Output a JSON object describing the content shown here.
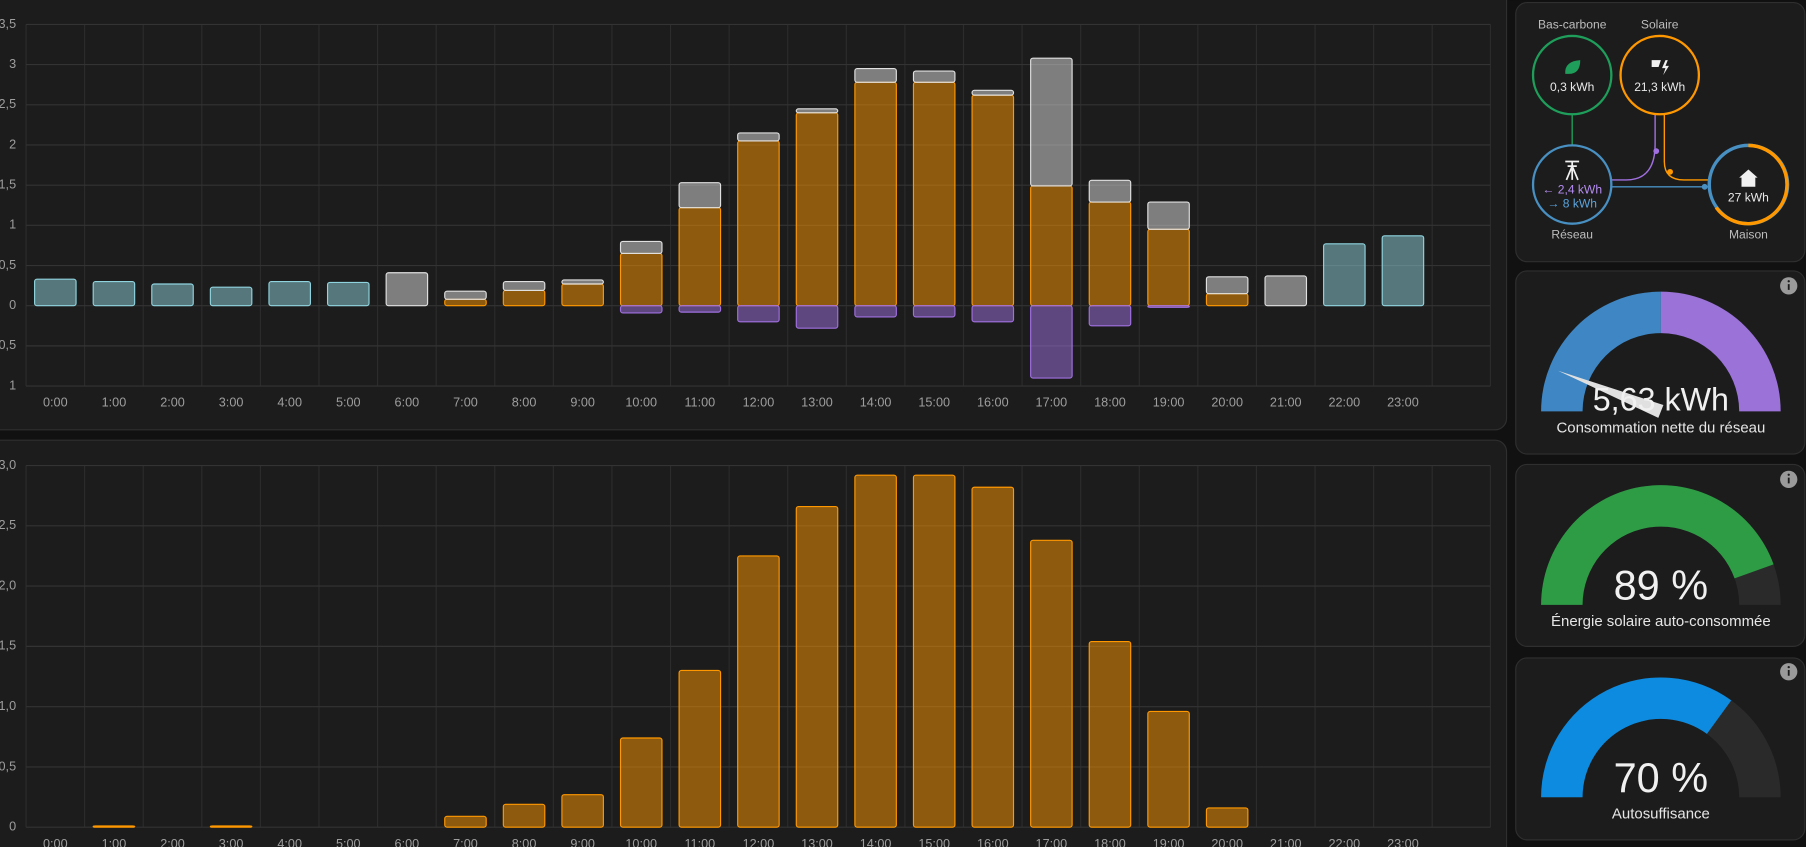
{
  "chart_data": [
    {
      "type": "bar",
      "stacked": true,
      "grid": true,
      "categories": [
        "0:00",
        "1:00",
        "2:00",
        "3:00",
        "4:00",
        "5:00",
        "6:00",
        "7:00",
        "8:00",
        "9:00",
        "10:00",
        "11:00",
        "12:00",
        "13:00",
        "14:00",
        "15:00",
        "16:00",
        "17:00",
        "18:00",
        "19:00",
        "20:00",
        "21:00",
        "22:00",
        "23:00"
      ],
      "series": [
        {
          "color": "#ff9800",
          "values": [
            null,
            null,
            null,
            null,
            null,
            null,
            null,
            0.08,
            0.19,
            0.27,
            0.65,
            1.22,
            2.05,
            2.4,
            2.78,
            2.78,
            2.62,
            1.49,
            1.29,
            0.95,
            0.15,
            null,
            null,
            null
          ]
        },
        {
          "color": "#8fd3de",
          "values": [
            0.33,
            0.3,
            0.27,
            0.23,
            0.3,
            0.29,
            null,
            null,
            null,
            null,
            null,
            null,
            null,
            null,
            null,
            null,
            null,
            null,
            null,
            null,
            null,
            null,
            0.77,
            0.87
          ]
        },
        {
          "color": "#e0e0e0",
          "values": [
            null,
            null,
            null,
            null,
            null,
            null,
            0.41,
            0.1,
            0.11,
            0.05,
            0.15,
            0.31,
            0.1,
            0.05,
            0.17,
            0.14,
            0.06,
            1.59,
            0.27,
            0.34,
            0.21,
            0.37,
            null,
            null
          ]
        },
        {
          "color": "#a070e0",
          "values": [
            null,
            null,
            null,
            null,
            null,
            null,
            null,
            null,
            null,
            null,
            -0.09,
            -0.08,
            -0.2,
            -0.28,
            -0.14,
            -0.14,
            -0.2,
            -0.9,
            -0.25,
            -0.02,
            null,
            null,
            null,
            null
          ]
        }
      ],
      "ylim": [
        -1,
        3.5
      ],
      "yticks": [
        {
          "value": -1,
          "label": "1"
        },
        {
          "value": -0.5,
          "label": "0,5"
        },
        0,
        {
          "value": 0.5,
          "label": "0,5"
        },
        1,
        {
          "value": 1.5,
          "label": "1,5"
        },
        2,
        {
          "value": 2.5,
          "label": "2,5"
        },
        3,
        {
          "value": 3.5,
          "label": "3,5"
        }
      ]
    },
    {
      "type": "bar",
      "grid": true,
      "color": "#ff9800",
      "categories": [
        "0:00",
        "1:00",
        "2:00",
        "3:00",
        "4:00",
        "5:00",
        "6:00",
        "7:00",
        "8:00",
        "9:00",
        "10:00",
        "11:00",
        "12:00",
        "13:00",
        "14:00",
        "15:00",
        "16:00",
        "17:00",
        "18:00",
        "19:00",
        "20:00",
        "21:00",
        "22:00",
        "23:00"
      ],
      "values": [
        0,
        0.01,
        0,
        0.01,
        0,
        0,
        0,
        0.09,
        0.19,
        0.27,
        0.74,
        1.3,
        2.25,
        2.66,
        2.92,
        2.92,
        2.82,
        2.38,
        1.54,
        0.96,
        0.16,
        0,
        0,
        0
      ],
      "ylim": [
        0,
        3
      ],
      "yticks": [
        0,
        {
          "value": 0.5,
          "label": "0,5"
        },
        {
          "value": 1,
          "label": "1,0"
        },
        {
          "value": 1.5,
          "label": "1,5"
        },
        {
          "value": 2,
          "label": "2,0"
        },
        {
          "value": 2.5,
          "label": "2,5"
        },
        {
          "value": 3,
          "label": "3,0"
        }
      ]
    }
  ],
  "energy_flow": {
    "nodes": [
      {
        "label": "Bas-carbone",
        "value": "0,3 kWh"
      },
      {
        "label": "Solaire",
        "value": "21,3 kWh"
      },
      {
        "label": "Réseau",
        "values": [
          "← 2,4 kWh",
          "→ 8 kWh"
        ]
      },
      {
        "label": "Maison",
        "value": "27 kWh"
      }
    ]
  },
  "gauges": [
    {
      "value_label": "5,63 kWh",
      "label": "Consommation nette du réseau"
    },
    {
      "value": 89,
      "range": [
        0,
        100
      ],
      "color": "#2e9b45",
      "value_label": "89 %",
      "label": "Énergie solaire auto-consommée"
    },
    {
      "value": 70,
      "range": [
        0,
        100
      ],
      "color": "#0d8be0",
      "value_label": "70 %",
      "label": "Autosuffisance"
    }
  ]
}
